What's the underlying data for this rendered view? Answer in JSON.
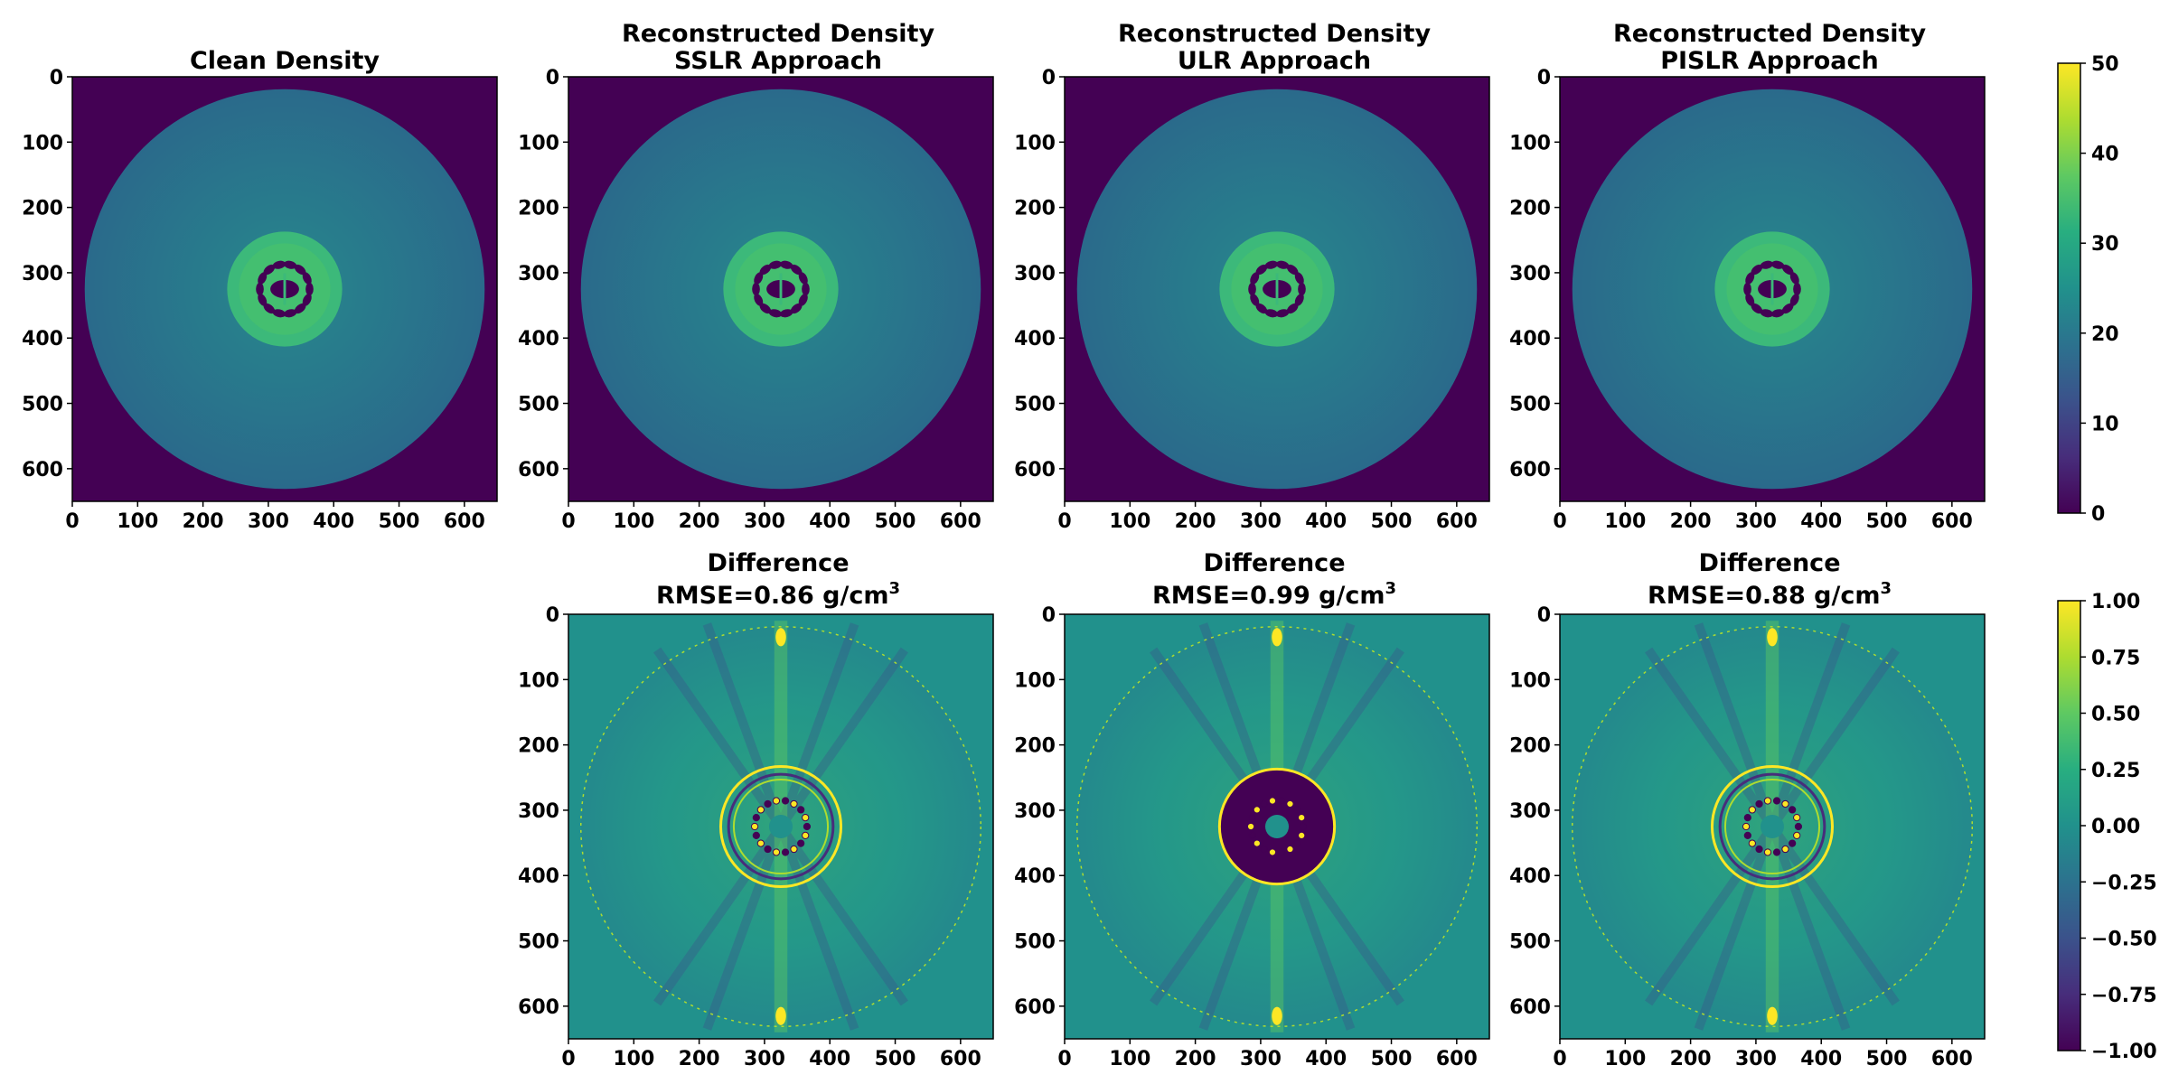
{
  "chart_data": [
    {
      "type": "heatmap",
      "title": "Clean Density",
      "subtitle": "",
      "xlim": [
        0,
        650
      ],
      "ylim": [
        650,
        0
      ],
      "x_ticks": [
        "0",
        "100",
        "200",
        "300",
        "400",
        "500",
        "600"
      ],
      "y_ticks": [
        "0",
        "100",
        "200",
        "300",
        "400",
        "500",
        "600"
      ],
      "colormap": "viridis",
      "vmin": 0,
      "vmax": 50,
      "kind": "density"
    },
    {
      "type": "heatmap",
      "title": "Reconstructed Density",
      "subtitle": "SSLR Approach",
      "xlim": [
        0,
        650
      ],
      "ylim": [
        650,
        0
      ],
      "x_ticks": [
        "0",
        "100",
        "200",
        "300",
        "400",
        "500",
        "600"
      ],
      "y_ticks": [
        "0",
        "100",
        "200",
        "300",
        "400",
        "500",
        "600"
      ],
      "colormap": "viridis",
      "vmin": 0,
      "vmax": 50,
      "kind": "density"
    },
    {
      "type": "heatmap",
      "title": "Reconstructed Density",
      "subtitle": "ULR Approach",
      "xlim": [
        0,
        650
      ],
      "ylim": [
        650,
        0
      ],
      "x_ticks": [
        "0",
        "100",
        "200",
        "300",
        "400",
        "500",
        "600"
      ],
      "y_ticks": [
        "0",
        "100",
        "200",
        "300",
        "400",
        "500",
        "600"
      ],
      "colormap": "viridis",
      "vmin": 0,
      "vmax": 50,
      "kind": "density"
    },
    {
      "type": "heatmap",
      "title": "Reconstructed Density",
      "subtitle": "PISLR Approach",
      "xlim": [
        0,
        650
      ],
      "ylim": [
        650,
        0
      ],
      "x_ticks": [
        "0",
        "100",
        "200",
        "300",
        "400",
        "500",
        "600"
      ],
      "y_ticks": [
        "0",
        "100",
        "200",
        "300",
        "400",
        "500",
        "600"
      ],
      "colormap": "viridis",
      "vmin": 0,
      "vmax": 50,
      "kind": "density"
    },
    {
      "type": "heatmap",
      "title": "Difference",
      "subtitle_prefix": "RMSE=0.86 g/cm",
      "subtitle_sup": "3",
      "xlim": [
        0,
        650
      ],
      "ylim": [
        650,
        0
      ],
      "x_ticks": [
        "0",
        "100",
        "200",
        "300",
        "400",
        "500",
        "600"
      ],
      "y_ticks": [
        "0",
        "100",
        "200",
        "300",
        "400",
        "500",
        "600"
      ],
      "colormap": "viridis",
      "vmin": -1,
      "vmax": 1,
      "kind": "diff",
      "variant": "sslr"
    },
    {
      "type": "heatmap",
      "title": "Difference",
      "subtitle_prefix": "RMSE=0.99 g/cm",
      "subtitle_sup": "3",
      "xlim": [
        0,
        650
      ],
      "ylim": [
        650,
        0
      ],
      "x_ticks": [
        "0",
        "100",
        "200",
        "300",
        "400",
        "500",
        "600"
      ],
      "y_ticks": [
        "0",
        "100",
        "200",
        "300",
        "400",
        "500",
        "600"
      ],
      "colormap": "viridis",
      "vmin": -1,
      "vmax": 1,
      "kind": "diff",
      "variant": "ulr"
    },
    {
      "type": "heatmap",
      "title": "Difference",
      "subtitle_prefix": "RMSE=0.88 g/cm",
      "subtitle_sup": "3",
      "xlim": [
        0,
        650
      ],
      "ylim": [
        650,
        0
      ],
      "x_ticks": [
        "0",
        "100",
        "200",
        "300",
        "400",
        "500",
        "600"
      ],
      "y_ticks": [
        "0",
        "100",
        "200",
        "300",
        "400",
        "500",
        "600"
      ],
      "colormap": "viridis",
      "vmin": -1,
      "vmax": 1,
      "kind": "diff",
      "variant": "pislr"
    }
  ],
  "colorbars": [
    {
      "colormap": "viridis",
      "vmin": 0,
      "vmax": 50,
      "ticks": [
        "0",
        "10",
        "20",
        "30",
        "40",
        "50"
      ]
    },
    {
      "colormap": "viridis",
      "vmin": -1,
      "vmax": 1,
      "ticks": [
        "−1.00",
        "−0.75",
        "−0.50",
        "−0.25",
        "0.00",
        "0.25",
        "0.50",
        "0.75",
        "1.00"
      ]
    }
  ]
}
